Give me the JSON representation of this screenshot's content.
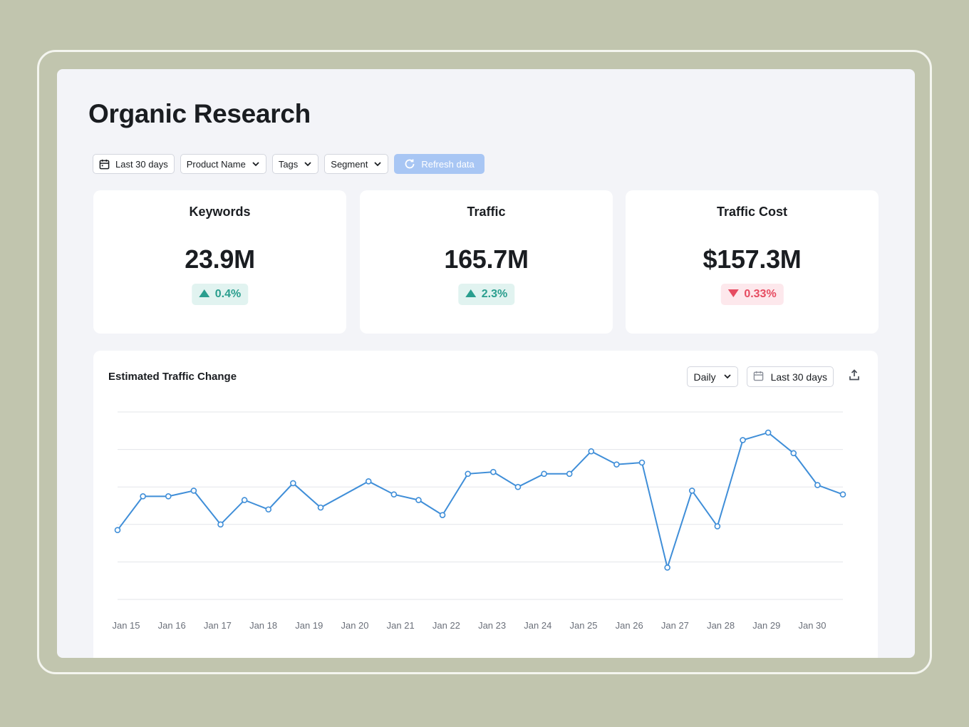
{
  "page": {
    "title": "Organic Research"
  },
  "toolbar": {
    "date_range": {
      "label": "Last 30 days",
      "icon": "calendar-icon"
    },
    "product": {
      "label": "Product Name",
      "icon": "chevron-down-icon"
    },
    "tags": {
      "label": "Tags",
      "icon": "chevron-down-icon"
    },
    "segment": {
      "label": "Segment",
      "icon": "chevron-down-icon"
    },
    "refresh": {
      "label": "Refresh data",
      "icon": "refresh-icon",
      "state": "disabled"
    }
  },
  "metrics": [
    {
      "title": "Keywords",
      "value": "23.9M",
      "change": "0.4%",
      "direction": "up"
    },
    {
      "title": "Traffic",
      "value": "165.7M",
      "change": "2.3%",
      "direction": "up"
    },
    {
      "title": "Traffic Cost",
      "value": "$157.3M",
      "change": "0.33%",
      "direction": "down"
    }
  ],
  "colors": {
    "accent": "#3f8ed8",
    "up": "#2a9e8e",
    "down": "#e64c61",
    "background": "#c1c5ae",
    "panel": "#f3f4f8"
  },
  "chart": {
    "title": "Estimated Traffic Change",
    "interval": "Daily",
    "range": "Last 30 days",
    "export_icon": "upload-icon"
  },
  "chart_data": {
    "type": "line",
    "x_labels": [
      "Jan 15",
      "Jan 16",
      "Jan 17",
      "Jan 18",
      "Jan 19",
      "Jan 20",
      "Jan 21",
      "Jan 22",
      "Jan 23",
      "Jan 24",
      "Jan 25",
      "Jan 26",
      "Jan 27",
      "Jan 28",
      "Jan 29",
      "Jan 30"
    ],
    "values": [
      0.37,
      0.55,
      0.55,
      0.58,
      0.4,
      0.53,
      0.48,
      0.62,
      0.49,
      0.63,
      0.56,
      0.53,
      0.45,
      0.67,
      0.68,
      0.6,
      0.67,
      0.67,
      0.79,
      0.72,
      0.73,
      0.17,
      0.58,
      0.39,
      0.85,
      0.89,
      0.78,
      0.61,
      0.56
    ],
    "point_x": [
      0.0,
      0.035,
      0.07,
      0.105,
      0.142,
      0.175,
      0.208,
      0.242,
      0.28,
      0.346,
      0.381,
      0.415,
      0.448,
      0.483,
      0.518,
      0.552,
      0.588,
      0.623,
      0.653,
      0.688,
      0.723,
      0.758,
      0.792,
      0.827,
      0.862,
      0.897,
      0.932,
      0.965,
      1.0
    ],
    "ylim": [
      0,
      1
    ],
    "gridlines": 6,
    "xlabel": "",
    "ylabel": ""
  }
}
